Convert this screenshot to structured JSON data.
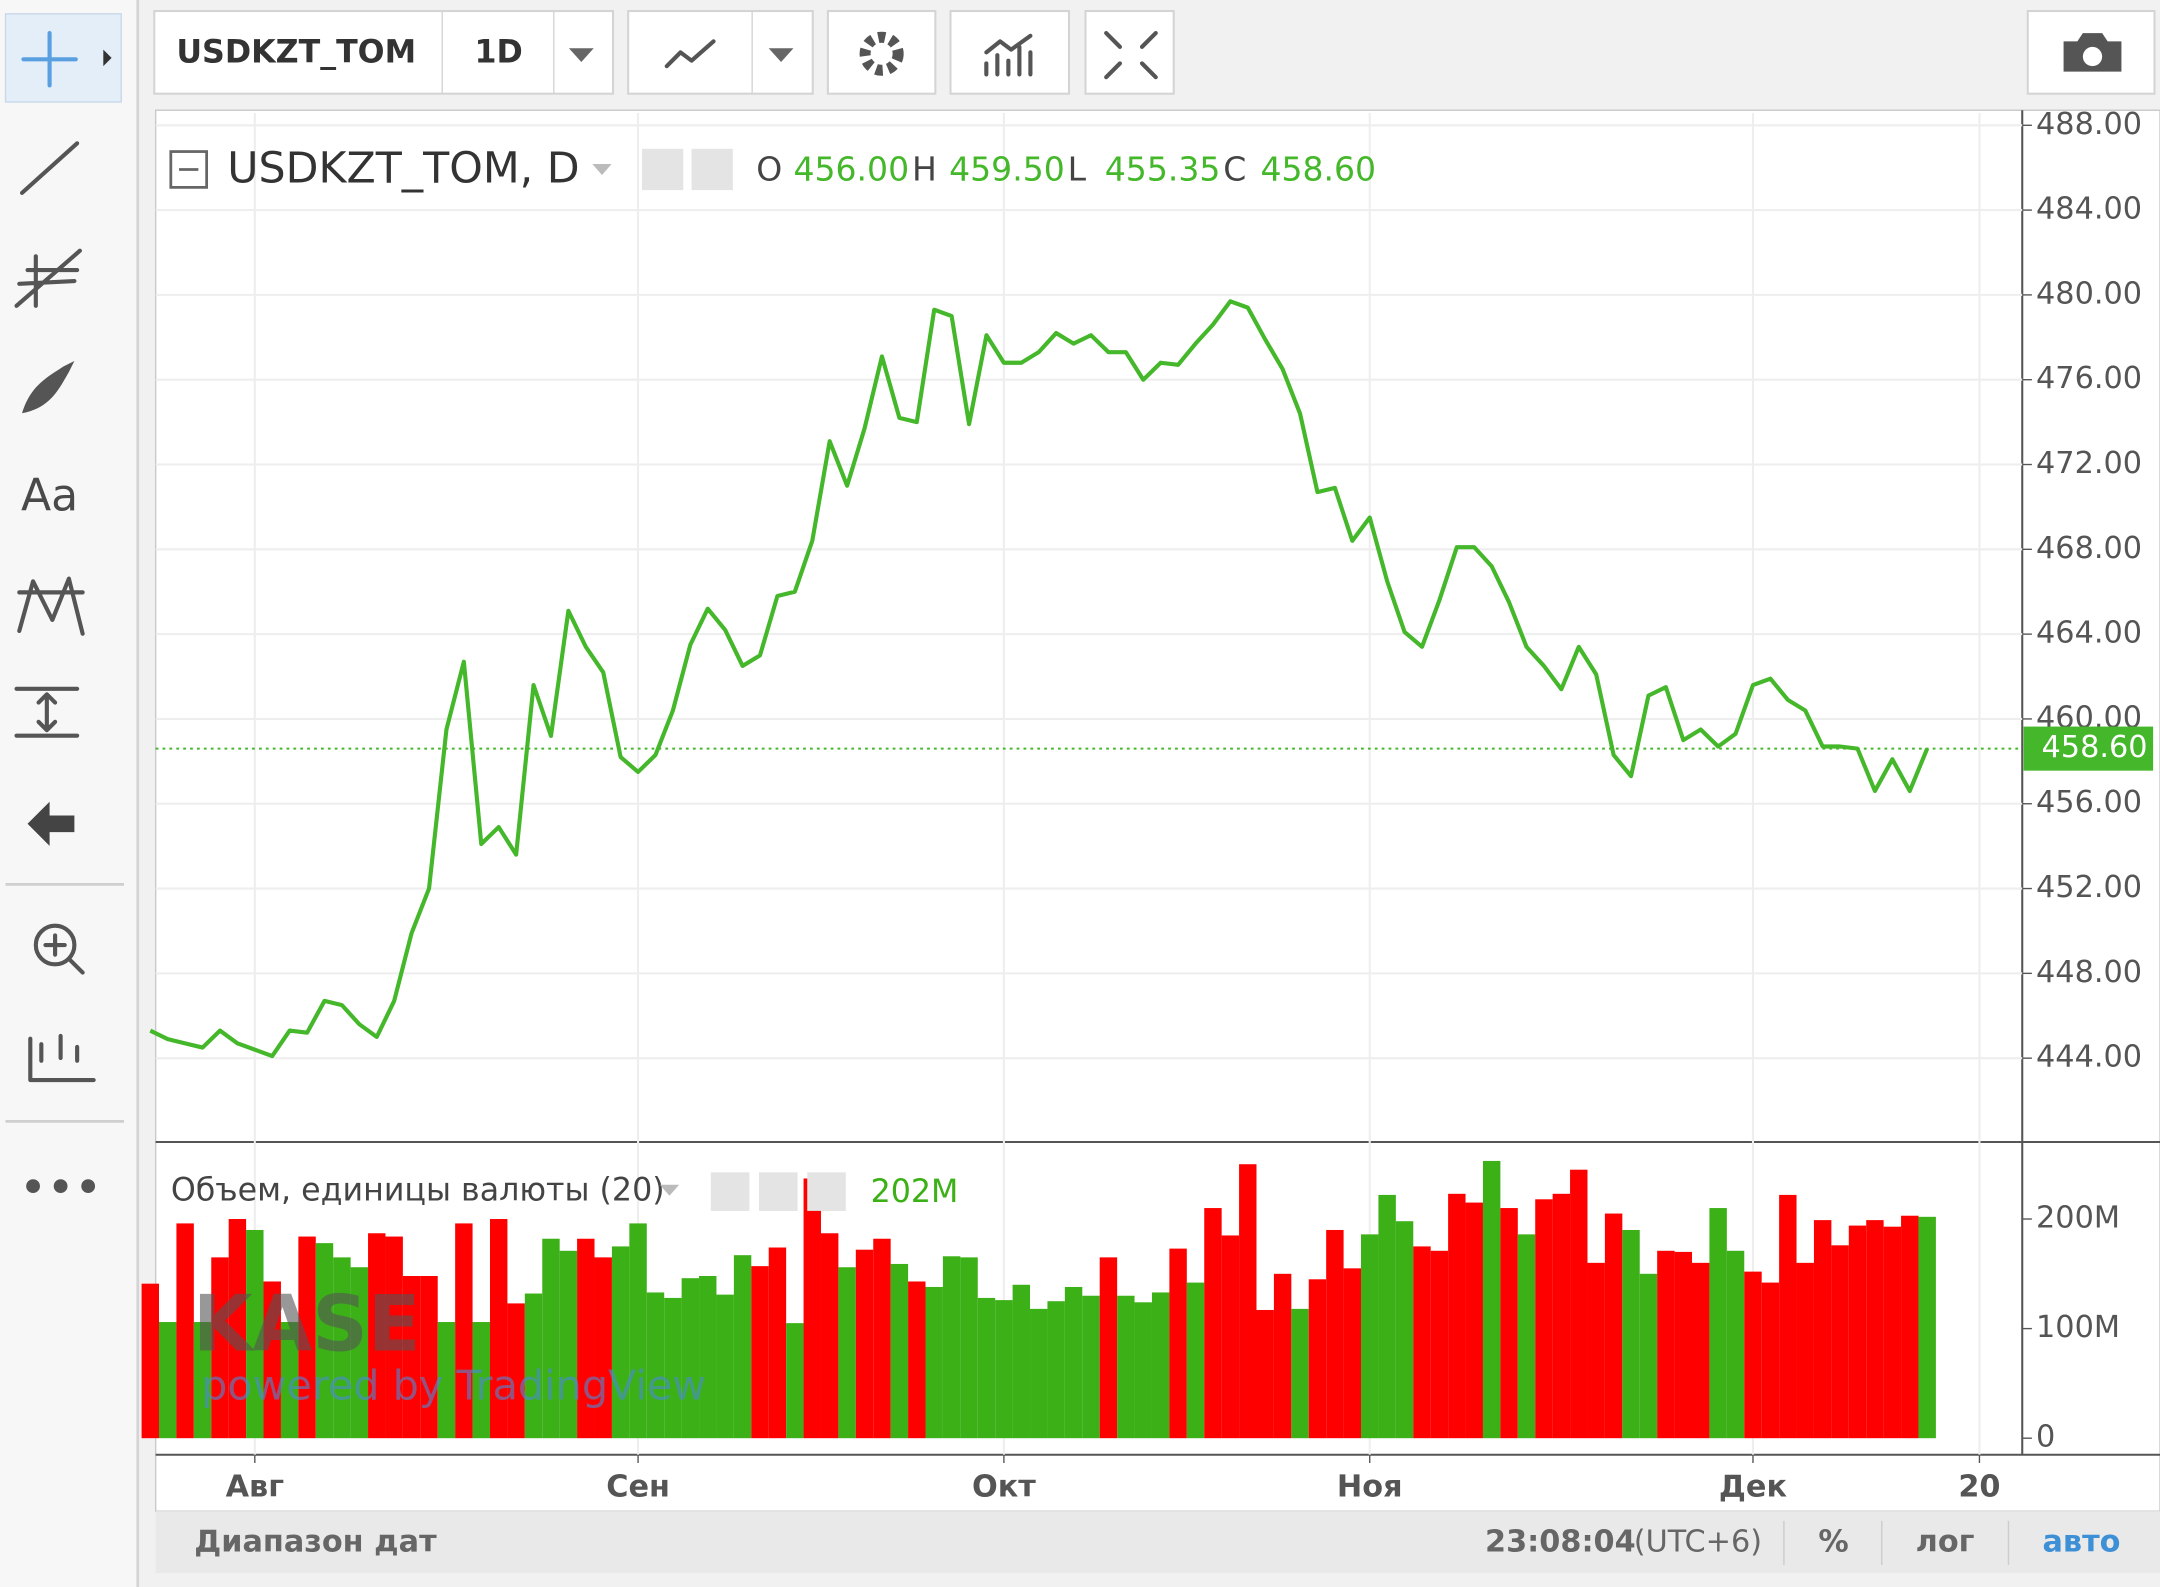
{
  "toolbar": {
    "symbol": "USDKZT_TOM",
    "interval": "1D",
    "text_tool": "Aa"
  },
  "chart_data": {
    "type": "line",
    "legend_title": "USDKZT_TOM, D",
    "ohlc": [
      {
        "name": "O",
        "value": 456.0,
        "label": "456.00"
      },
      {
        "name": "H",
        "value": 459.5,
        "label": "459.50"
      },
      {
        "name": "L",
        "value": 455.35,
        "label": "455.35"
      },
      {
        "name": "C",
        "value": 458.6,
        "label": "458.60"
      }
    ],
    "categories": [
      null,
      null,
      null,
      null,
      null,
      null,
      "Авг",
      null,
      null,
      null,
      null,
      null,
      null,
      null,
      null,
      null,
      null,
      null,
      null,
      null,
      null,
      null,
      null,
      null,
      null,
      null,
      null,
      null,
      "Сен",
      null,
      null,
      null,
      null,
      null,
      null,
      null,
      null,
      null,
      null,
      null,
      null,
      null,
      null,
      null,
      null,
      null,
      null,
      null,
      null,
      "Окт",
      null,
      null,
      null,
      null,
      null,
      null,
      null,
      null,
      null,
      null,
      null,
      null,
      null,
      null,
      null,
      null,
      null,
      null,
      null,
      null,
      "Ноя",
      null,
      null,
      null,
      null,
      null,
      null,
      null,
      null,
      null,
      null,
      null,
      null,
      null,
      null,
      null,
      null,
      null,
      null,
      null,
      null,
      null,
      "Дек",
      null,
      null,
      null,
      null,
      null,
      null,
      null,
      null,
      null,
      null,
      null,
      null,
      "20"
    ],
    "values": [
      445.3,
      444.9,
      444.7,
      444.5,
      445.3,
      444.7,
      444.4,
      444.1,
      445.3,
      445.2,
      446.7,
      446.5,
      445.6,
      445.0,
      446.7,
      449.9,
      452.0,
      459.5,
      462.7,
      454.1,
      454.9,
      453.6,
      461.6,
      459.2,
      465.1,
      463.4,
      462.2,
      458.2,
      457.5,
      458.3,
      460.4,
      463.5,
      465.2,
      464.2,
      462.5,
      463.0,
      465.8,
      466.0,
      468.4,
      473.1,
      471.0,
      473.7,
      477.1,
      474.2,
      474.0,
      479.3,
      479.0,
      473.9,
      478.1,
      476.8,
      476.8,
      477.3,
      478.2,
      477.7,
      478.1,
      477.3,
      477.3,
      476.0,
      476.8,
      476.7,
      477.7,
      478.6,
      479.7,
      479.4,
      477.9,
      476.5,
      474.4,
      470.7,
      470.9,
      468.4,
      469.5,
      466.5,
      464.1,
      463.4,
      465.6,
      468.1,
      468.1,
      467.2,
      465.5,
      463.4,
      462.5,
      461.4,
      463.4,
      462.1,
      458.3,
      457.3,
      461.1,
      461.5,
      459.0,
      459.5,
      458.7,
      459.3,
      461.6,
      461.9,
      460.9,
      460.4,
      458.7,
      458.7,
      458.6,
      456.6,
      458.1,
      456.6,
      458.6,
      null,
      null,
      null
    ],
    "color": "#44b72a",
    "ylim": [
      440.11,
      488.58
    ],
    "yticks": [
      {
        "value": 444,
        "label": "444.00"
      },
      {
        "value": 448,
        "label": "448.00"
      },
      {
        "value": 452,
        "label": "452.00"
      },
      {
        "value": 456,
        "label": "456.00"
      },
      {
        "value": 460,
        "label": "460.00"
      },
      {
        "value": 464,
        "label": "464.00"
      },
      {
        "value": 468,
        "label": "468.00"
      },
      {
        "value": 472,
        "label": "472.00"
      },
      {
        "value": 476,
        "label": "476.00"
      },
      {
        "value": 480,
        "label": "480.00"
      },
      {
        "value": 484,
        "label": "484.00"
      },
      {
        "value": 488,
        "label": "488.00"
      }
    ],
    "last_price": {
      "value": 458.6,
      "label": "458.60"
    },
    "grid": true,
    "log_scale": false,
    "volume": {
      "type": "bar",
      "title": "Объем, единицы валюты (20)",
      "last": {
        "value": 202000000,
        "label": "202M"
      },
      "values": [
        141000000,
        106000000,
        196000000,
        106000000,
        165000000,
        200000000,
        190000000,
        143000000,
        106000000,
        184000000,
        178000000,
        165000000,
        156000000,
        187000000,
        184000000,
        148000000,
        148000000,
        106000000,
        196000000,
        106000000,
        200000000,
        123000000,
        132000000,
        182000000,
        171000000,
        182000000,
        165000000,
        175000000,
        196000000,
        133000000,
        128000000,
        146000000,
        148000000,
        131000000,
        167000000,
        157000000,
        174000000,
        105000000,
        237000000,
        187000000,
        156000000,
        172000000,
        182000000,
        159000000,
        143000000,
        138000000,
        166000000,
        165000000,
        128000000,
        126000000,
        140000000,
        118000000,
        125000000,
        138000000,
        130000000,
        165000000,
        130000000,
        124000000,
        133000000,
        173000000,
        142000000,
        210000000,
        185000000,
        250000000,
        117000000,
        150000000,
        118000000,
        145000000,
        190000000,
        155000000,
        186000000,
        222000000,
        198000000,
        175000000,
        171000000,
        223000000,
        215000000,
        253000000,
        210000000,
        186000000,
        218000000,
        223000000,
        245000000,
        160000000,
        205000000,
        190000000,
        150000000,
        171000000,
        170000000,
        160000000,
        210000000,
        171000000,
        152000000,
        142000000,
        222000000,
        160000000,
        199000000,
        176000000,
        194000000,
        199000000,
        193000000,
        203000000,
        202000000,
        null,
        null,
        null
      ],
      "colors": [
        "#ff0000",
        "#3cb017",
        "#ff0000",
        "#3cb017",
        "#ff0000",
        "#ff0000",
        "#3cb017",
        "#ff0000",
        "#3cb017",
        "#ff0000",
        "#3cb017",
        "#3cb017",
        "#3cb017",
        "#ff0000",
        "#ff0000",
        "#ff0000",
        "#ff0000",
        "#3cb017",
        "#ff0000",
        "#3cb017",
        "#ff0000",
        "#ff0000",
        "#3cb017",
        "#3cb017",
        "#3cb017",
        "#ff0000",
        "#ff0000",
        "#3cb017",
        "#3cb017",
        "#3cb017",
        "#3cb017",
        "#3cb017",
        "#3cb017",
        "#3cb017",
        "#3cb017",
        "#ff0000",
        "#ff0000",
        "#3cb017",
        "#ff0000",
        "#ff0000",
        "#3cb017",
        "#ff0000",
        "#ff0000",
        "#3cb017",
        "#ff0000",
        "#3cb017",
        "#3cb017",
        "#3cb017",
        "#3cb017",
        "#3cb017",
        "#3cb017",
        "#3cb017",
        "#3cb017",
        "#3cb017",
        "#3cb017",
        "#ff0000",
        "#3cb017",
        "#3cb017",
        "#3cb017",
        "#ff0000",
        "#3cb017",
        "#ff0000",
        "#ff0000",
        "#ff0000",
        "#ff0000",
        "#ff0000",
        "#3cb017",
        "#ff0000",
        "#ff0000",
        "#ff0000",
        "#3cb017",
        "#3cb017",
        "#3cb017",
        "#ff0000",
        "#ff0000",
        "#ff0000",
        "#ff0000",
        "#3cb017",
        "#ff0000",
        "#3cb017",
        "#ff0000",
        "#ff0000",
        "#ff0000",
        "#ff0000",
        "#ff0000",
        "#3cb017",
        "#3cb017",
        "#ff0000",
        "#ff0000",
        "#ff0000",
        "#3cb017",
        "#3cb017",
        "#ff0000",
        "#ff0000",
        "#ff0000",
        "#ff0000",
        "#ff0000",
        "#ff0000",
        "#ff0000",
        "#ff0000",
        "#ff0000",
        "#ff0000",
        "#3cb017",
        null,
        null,
        null
      ],
      "ylim": [
        0,
        269000000
      ],
      "yticks": [
        0,
        {
          "value": 100000000,
          "label": "100M"
        },
        {
          "value": 200000000,
          "label": "200M"
        }
      ]
    }
  },
  "watermark": {
    "brand": "KASE",
    "credit": "powered by TradingView"
  },
  "status_bar": {
    "date_range": "Диапазон дат",
    "time": "23:08:04",
    "timezone": "(UTC+6)",
    "percent": "%",
    "log": "лог",
    "auto": "авто"
  }
}
